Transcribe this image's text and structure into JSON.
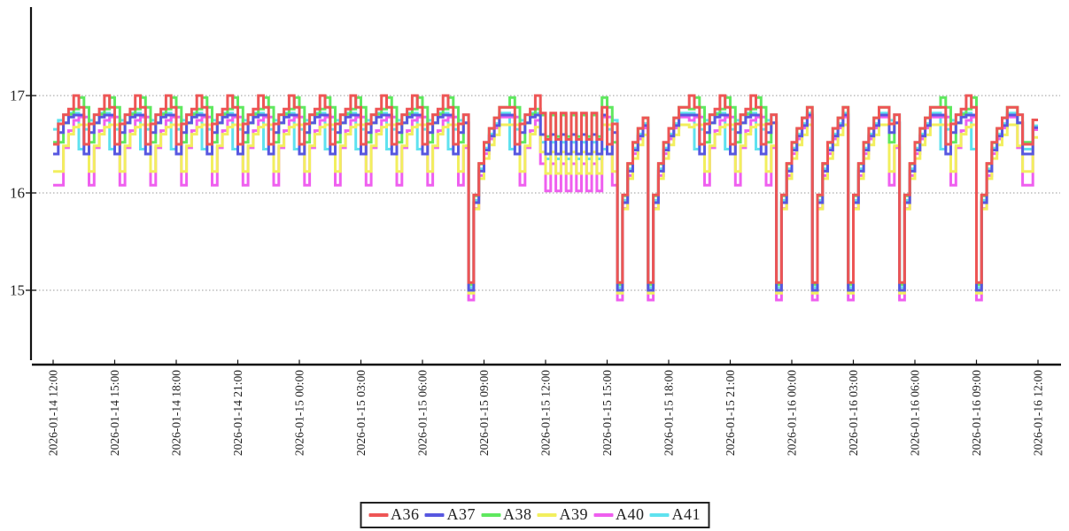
{
  "chart_data": {
    "type": "line",
    "step": true,
    "title": "",
    "grid": "dotted-horizontal",
    "legend_position": "bottom-center",
    "x_axis": {
      "label": "",
      "start": "2026-01-14 12:00",
      "end": "2026-01-16 12:00",
      "total_hours": 48,
      "tick_interval_hours": 3,
      "tick_labels": [
        "2026-01-14 12:00",
        "2026-01-14 15:00",
        "2026-01-14 18:00",
        "2026-01-14 21:00",
        "2026-01-15 00:00",
        "2026-01-15 03:00",
        "2026-01-15 06:00",
        "2026-01-15 09:00",
        "2026-01-15 12:00",
        "2026-01-15 15:00",
        "2026-01-15 18:00",
        "2026-01-15 21:00",
        "2026-01-16 00:00",
        "2026-01-16 03:00",
        "2026-01-16 06:00",
        "2026-01-16 09:00",
        "2026-01-16 12:00"
      ]
    },
    "y_axis": {
      "label": "",
      "tick_values": [
        15,
        16,
        17
      ],
      "tick_labels": [
        "15",
        "16",
        "17"
      ],
      "min": 14.4,
      "max": 17.95
    },
    "series": [
      {
        "name": "A36",
        "color": "#ee5555",
        "plateau": 16.88,
        "dip": 16.5,
        "deep": 15.08,
        "spike": 17.0,
        "spread_lo": 16.55,
        "spread_hi": 16.82,
        "shift_quarters": 0
      },
      {
        "name": "A37",
        "color": "#5757e0",
        "plateau": 16.8,
        "dip": 16.4,
        "deep": 15.0,
        "spike": null,
        "spread_lo": 16.4,
        "spread_hi": 16.6,
        "shift_quarters": 0
      },
      {
        "name": "A38",
        "color": "#5fe85f",
        "plateau": 16.88,
        "dip": 16.52,
        "deep": 15.06,
        "spike": 16.98,
        "spread_lo": 16.58,
        "spread_hi": 16.8,
        "shift_quarters": 1
      },
      {
        "name": "A39",
        "color": "#f2ef5e",
        "plateau": 16.7,
        "dip": 16.22,
        "deep": 14.97,
        "spike": null,
        "spread_lo": 16.2,
        "spread_hi": 16.42,
        "shift_quarters": 1
      },
      {
        "name": "A40",
        "color": "#ef5fef",
        "plateau": 16.78,
        "dip": 16.08,
        "deep": 14.9,
        "spike": null,
        "spread_lo": 16.02,
        "spread_hi": 16.3,
        "shift_quarters": 1
      },
      {
        "name": "A41",
        "color": "#5fe2ef",
        "plateau": 16.82,
        "dip": 16.45,
        "deep": 15.03,
        "spike": null,
        "spread_lo": 16.35,
        "spread_hi": 16.52,
        "shift_quarters": -1
      }
    ],
    "pattern": {
      "sample_hours": 0.25,
      "cycle_hours": 1.5,
      "rise_profile": [
        0,
        0.55,
        0.8,
        0.95,
        1,
        1
      ],
      "spike_phase": 4,
      "deep_dips": [
        20.25,
        27.5,
        29.0,
        35.25,
        37.0,
        38.75,
        41.25,
        45.0
      ],
      "recovery_profile": [
        0,
        0.5,
        0.68,
        0.8,
        0.88,
        0.94,
        1,
        1
      ],
      "spread_region": {
        "start": 23.75,
        "end": 26.5
      },
      "end_shelf_start": 47.25,
      "end_rise_start": 47.75,
      "end_hour": 48
    },
    "axis_color": "#111111",
    "grid_color": "#999999",
    "text_color": "#222222"
  }
}
